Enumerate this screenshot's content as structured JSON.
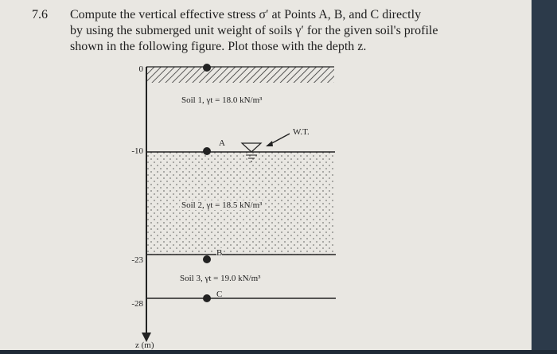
{
  "problem": {
    "number": "7.6",
    "text": "Compute the vertical effective stress σ′ at Points A, B, and C directly\nby using the submerged unit weight of soils γ′ for the given soil's profile\nshown in the following figure. Plot those with the depth z."
  },
  "figure": {
    "depth_labels": [
      "0",
      "-10",
      "-23",
      "-28"
    ],
    "axis_label": "z (m)",
    "soil_labels": [
      "Soil 1, γt = 18.0 kN/m³",
      "Soil 2, γt = 18.5 kN/m³",
      "Soil 3, γt = 19.0 kN/m³"
    ],
    "points": [
      "A",
      "B",
      "C"
    ],
    "water_table_label": "W.T."
  }
}
